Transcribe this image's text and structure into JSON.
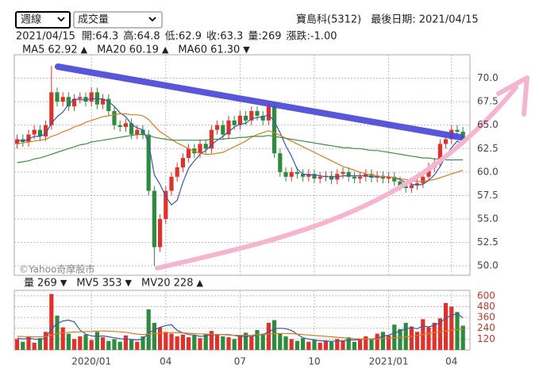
{
  "controls": {
    "period": "週線",
    "indicator": "成交量"
  },
  "header": {
    "stock": "寶島科(5312)",
    "last_date": "最後日期: 2021/04/15"
  },
  "quote": {
    "date": "2021/04/15",
    "items": [
      {
        "label": "開:",
        "value": 64.3
      },
      {
        "label": "高:",
        "value": 64.8
      },
      {
        "label": "低:",
        "value": 62.9
      },
      {
        "label": "收:",
        "value": 63.3
      },
      {
        "label": "量:",
        "value": 269
      },
      {
        "label": "漲跌:",
        "value": "-1.00"
      }
    ]
  },
  "watermark": "©Yahoo奇摩股市",
  "chart_data": [
    {
      "type": "candlestick",
      "up_color": "#e0322b",
      "down_color": "#2e8b3e",
      "grid": true,
      "ylim": [
        49.0,
        72.5
      ],
      "yticks": [
        {
          "value": 50,
          "label": "50.0"
        },
        52.5,
        {
          "value": 55,
          "label": "55.0"
        },
        57.5,
        {
          "value": 60,
          "label": "60.0"
        },
        62.5,
        {
          "value": 65,
          "label": "65.0"
        },
        67.5,
        {
          "value": 70,
          "label": "70.0"
        }
      ],
      "open": [
        63.0,
        63.5,
        63.2,
        64.0,
        64.5,
        63.8,
        65.0,
        68.5,
        67.5,
        68.0,
        67.0,
        67.8,
        68.0,
        67.5,
        68.5,
        67.2,
        67.8,
        66.5,
        65.0,
        64.8,
        65.2,
        64.0,
        64.5,
        64.0,
        58.0,
        52.0,
        55.0,
        58.0,
        59.5,
        60.5,
        61.5,
        62.5,
        62.0,
        63.0,
        62.5,
        64.5,
        65.0,
        64.0,
        65.5,
        65.0,
        66.0,
        65.5,
        66.5,
        66.0,
        65.5,
        67.0,
        62.0,
        60.0,
        59.5,
        60.0,
        59.8,
        59.5,
        59.8,
        59.3,
        59.5,
        59.6,
        59.2,
        59.8,
        60.0,
        59.5,
        59.3,
        59.5,
        59.8,
        59.4,
        59.6,
        59.3,
        59.5,
        59.0,
        58.5,
        58.3,
        58.6,
        58.8,
        59.5,
        60.5,
        61.0,
        63.0,
        63.5,
        64.5,
        64.3
      ],
      "high": [
        64.0,
        64.0,
        64.5,
        65.0,
        65.0,
        65.5,
        71.3,
        69.0,
        68.5,
        68.5,
        68.3,
        68.5,
        68.5,
        69.0,
        69.0,
        68.3,
        68.3,
        67.0,
        65.5,
        65.7,
        65.7,
        65.0,
        65.0,
        64.5,
        58.5,
        55.5,
        58.5,
        60.0,
        61.0,
        62.0,
        63.0,
        63.0,
        63.5,
        63.5,
        65.0,
        65.5,
        65.5,
        66.0,
        66.0,
        66.5,
        66.5,
        67.0,
        67.0,
        66.5,
        67.6,
        67.5,
        62.5,
        60.5,
        60.5,
        60.5,
        60.3,
        60.3,
        60.3,
        60.0,
        60.1,
        60.1,
        60.3,
        60.5,
        60.5,
        60.0,
        60.0,
        60.3,
        60.3,
        60.1,
        60.1,
        60.0,
        60.0,
        59.5,
        59.0,
        59.1,
        59.3,
        60.0,
        61.0,
        61.5,
        63.5,
        64.0,
        65.0,
        65.0,
        64.8
      ],
      "low": [
        62.5,
        62.7,
        62.7,
        63.5,
        63.3,
        63.3,
        64.5,
        67.0,
        67.0,
        66.5,
        66.5,
        67.3,
        67.0,
        67.0,
        66.7,
        66.7,
        66.0,
        64.5,
        64.3,
        64.3,
        63.5,
        63.5,
        63.5,
        57.5,
        50.0,
        51.5,
        54.5,
        57.5,
        59.0,
        60.0,
        61.0,
        61.5,
        61.5,
        62.0,
        62.0,
        64.0,
        63.5,
        63.5,
        64.5,
        64.5,
        65.0,
        65.0,
        65.5,
        65.0,
        65.0,
        61.5,
        59.5,
        59.0,
        59.0,
        59.3,
        59.0,
        59.0,
        58.8,
        58.8,
        59.0,
        58.7,
        58.7,
        59.3,
        59.0,
        58.8,
        58.8,
        59.0,
        58.9,
        58.9,
        58.8,
        58.8,
        58.5,
        58.0,
        57.8,
        57.8,
        58.1,
        58.3,
        59.0,
        60.0,
        60.5,
        62.5,
        63.0,
        63.8,
        62.9
      ],
      "close": [
        63.5,
        63.2,
        64.0,
        64.5,
        63.8,
        65.0,
        68.5,
        67.5,
        68.0,
        67.0,
        67.8,
        68.0,
        67.5,
        68.5,
        67.2,
        67.8,
        66.5,
        65.0,
        64.8,
        65.2,
        64.0,
        64.5,
        64.0,
        58.0,
        52.0,
        55.0,
        58.0,
        59.5,
        60.5,
        61.5,
        62.5,
        62.0,
        63.0,
        62.5,
        64.5,
        65.0,
        64.0,
        65.5,
        65.0,
        66.0,
        65.5,
        66.5,
        66.0,
        65.5,
        67.0,
        62.0,
        60.0,
        59.5,
        60.0,
        59.8,
        59.5,
        59.8,
        59.3,
        59.5,
        59.6,
        59.2,
        59.8,
        60.0,
        59.5,
        59.3,
        59.5,
        59.8,
        59.4,
        59.6,
        59.3,
        59.5,
        59.0,
        58.5,
        58.3,
        58.6,
        58.8,
        59.5,
        60.5,
        61.0,
        63.0,
        63.5,
        64.5,
        64.3,
        63.3
      ],
      "series": [
        {
          "name": "MA5",
          "color": "#3a56b0",
          "legend_value": "62.92",
          "trend": "▲",
          "trend_color": "#e0322b",
          "values": [
            63.4,
            63.3,
            63.5,
            63.8,
            63.8,
            64.1,
            65.2,
            65.9,
            66.4,
            67.2,
            67.8,
            67.7,
            67.7,
            67.8,
            67.8,
            67.8,
            67.5,
            67.0,
            66.3,
            65.9,
            65.1,
            64.7,
            64.5,
            63.1,
            59.7,
            58.7,
            57.4,
            56.5,
            57.0,
            58.9,
            60.4,
            61.2,
            61.9,
            62.3,
            62.9,
            63.4,
            63.8,
            64.3,
            64.8,
            65.1,
            65.2,
            65.7,
            65.8,
            65.9,
            66.1,
            65.4,
            64.2,
            62.8,
            61.7,
            60.3,
            59.8,
            59.7,
            59.7,
            59.6,
            59.5,
            59.5,
            59.5,
            59.6,
            59.6,
            59.6,
            59.6,
            59.6,
            59.5,
            59.5,
            59.5,
            59.5,
            59.4,
            59.2,
            58.9,
            58.7,
            58.6,
            58.7,
            59.1,
            59.7,
            60.6,
            61.7,
            62.6,
            63.3,
            62.92
          ]
        },
        {
          "name": "MA20",
          "color": "#e07b1c",
          "legend_value": "60.19",
          "trend": "▲",
          "trend_color": "#e0322b",
          "values": [
            63.0,
            63.1,
            63.2,
            63.3,
            63.4,
            63.5,
            63.8,
            64.0,
            64.3,
            64.5,
            64.8,
            65.0,
            65.3,
            65.5,
            65.7,
            65.9,
            66.0,
            66.1,
            66.2,
            66.2,
            66.1,
            66.1,
            66.0,
            65.6,
            64.9,
            64.3,
            63.9,
            63.5,
            63.1,
            62.8,
            62.5,
            62.2,
            62.0,
            61.9,
            61.9,
            62.0,
            62.1,
            62.4,
            62.7,
            63.0,
            63.3,
            63.7,
            64.0,
            64.2,
            64.4,
            64.2,
            63.9,
            63.6,
            63.3,
            63.0,
            62.7,
            62.4,
            62.1,
            61.8,
            61.5,
            61.2,
            60.9,
            60.6,
            60.4,
            60.2,
            60.0,
            59.8,
            59.7,
            59.6,
            59.5,
            59.5,
            59.4,
            59.3,
            59.2,
            59.1,
            59.0,
            59.0,
            59.1,
            59.2,
            59.4,
            59.6,
            59.8,
            60.0,
            60.19
          ]
        },
        {
          "name": "MA60",
          "color": "#3f8f48",
          "legend_value": "61.30",
          "trend": "▼",
          "trend_color": "#2e8b3e",
          "values": [
            61.0,
            61.1,
            61.2,
            61.4,
            61.5,
            61.7,
            61.9,
            62.1,
            62.3,
            62.5,
            62.7,
            62.9,
            63.0,
            63.2,
            63.3,
            63.4,
            63.5,
            63.6,
            63.7,
            63.8,
            63.9,
            64.0,
            64.0,
            63.9,
            63.7,
            63.6,
            63.5,
            63.4,
            63.4,
            63.4,
            63.4,
            63.4,
            63.4,
            63.4,
            63.5,
            63.5,
            63.5,
            63.6,
            63.6,
            63.7,
            63.7,
            63.8,
            63.8,
            63.8,
            63.9,
            63.8,
            63.7,
            63.6,
            63.5,
            63.4,
            63.3,
            63.2,
            63.1,
            63.0,
            62.9,
            62.8,
            62.7,
            62.6,
            62.6,
            62.5,
            62.5,
            62.4,
            62.3,
            62.3,
            62.2,
            62.1,
            62.0,
            61.9,
            61.8,
            61.7,
            61.6,
            61.5,
            61.5,
            61.4,
            61.4,
            61.3,
            61.3,
            61.3,
            61.3
          ]
        }
      ]
    },
    {
      "type": "volume",
      "name": "量",
      "legend_value": 269,
      "trend": "▼",
      "trend_color": "#2e8b3e",
      "tick_color": "#c0392b",
      "grid": true,
      "ylim": [
        0,
        660
      ],
      "yticks": [
        120,
        240,
        360,
        480,
        600
      ],
      "xticks": [
        {
          "value": 13,
          "label": "2020/01"
        },
        {
          "value": 26,
          "label": "04"
        },
        {
          "value": 39,
          "label": "07"
        },
        {
          "value": 52,
          "label": "10"
        },
        {
          "value": 65,
          "label": "2021/01"
        },
        {
          "value": 76,
          "label": "04"
        }
      ],
      "values": [
        120,
        90,
        150,
        80,
        130,
        200,
        620,
        380,
        250,
        180,
        120,
        150,
        170,
        110,
        200,
        140,
        100,
        120,
        90,
        160,
        110,
        90,
        150,
        450,
        300,
        250,
        200,
        180,
        150,
        170,
        140,
        160,
        130,
        180,
        210,
        170,
        150,
        140,
        120,
        160,
        190,
        150,
        220,
        180,
        300,
        330,
        180,
        150,
        120,
        100,
        130,
        90,
        110,
        80,
        100,
        90,
        120,
        100,
        140,
        90,
        110,
        150,
        120,
        180,
        200,
        160,
        280,
        230,
        300,
        260,
        200,
        340,
        250,
        300,
        350,
        520,
        480,
        420,
        269
      ],
      "series": [
        {
          "name": "MV5",
          "color": "#3a56b0",
          "legend_value": 353,
          "trend": "▼",
          "trend_color": "#2e8b3e",
          "values": [
            130,
            120,
            130,
            120,
            115,
            130,
            235,
            290,
            320,
            330,
            310,
            220,
            175,
            155,
            150,
            155,
            145,
            135,
            125,
            120,
            115,
            110,
            120,
            190,
            220,
            250,
            270,
            280,
            215,
            190,
            170,
            165,
            150,
            155,
            165,
            170,
            170,
            170,
            160,
            150,
            150,
            150,
            165,
            170,
            200,
            235,
            240,
            235,
            215,
            175,
            135,
            120,
            110,
            100,
            100,
            95,
            100,
            100,
            110,
            110,
            115,
            120,
            120,
            130,
            150,
            165,
            185,
            210,
            235,
            245,
            235,
            265,
            255,
            275,
            300,
            355,
            380,
            405,
            353
          ]
        },
        {
          "name": "MV20",
          "color": "#e07b1c",
          "legend_value": 228,
          "trend": "▲",
          "trend_color": "#e0322b",
          "values": [
            150,
            148,
            146,
            145,
            145,
            148,
            165,
            180,
            190,
            195,
            198,
            200,
            202,
            205,
            208,
            210,
            208,
            205,
            200,
            195,
            185,
            175,
            170,
            175,
            180,
            185,
            190,
            192,
            190,
            188,
            185,
            180,
            178,
            175,
            172,
            170,
            168,
            165,
            163,
            162,
            163,
            165,
            168,
            170,
            175,
            180,
            182,
            182,
            180,
            175,
            170,
            165,
            160,
            155,
            150,
            145,
            140,
            135,
            130,
            125,
            122,
            120,
            120,
            122,
            125,
            130,
            135,
            140,
            145,
            150,
            160,
            170,
            180,
            190,
            200,
            210,
            218,
            225,
            228
          ]
        }
      ]
    }
  ]
}
